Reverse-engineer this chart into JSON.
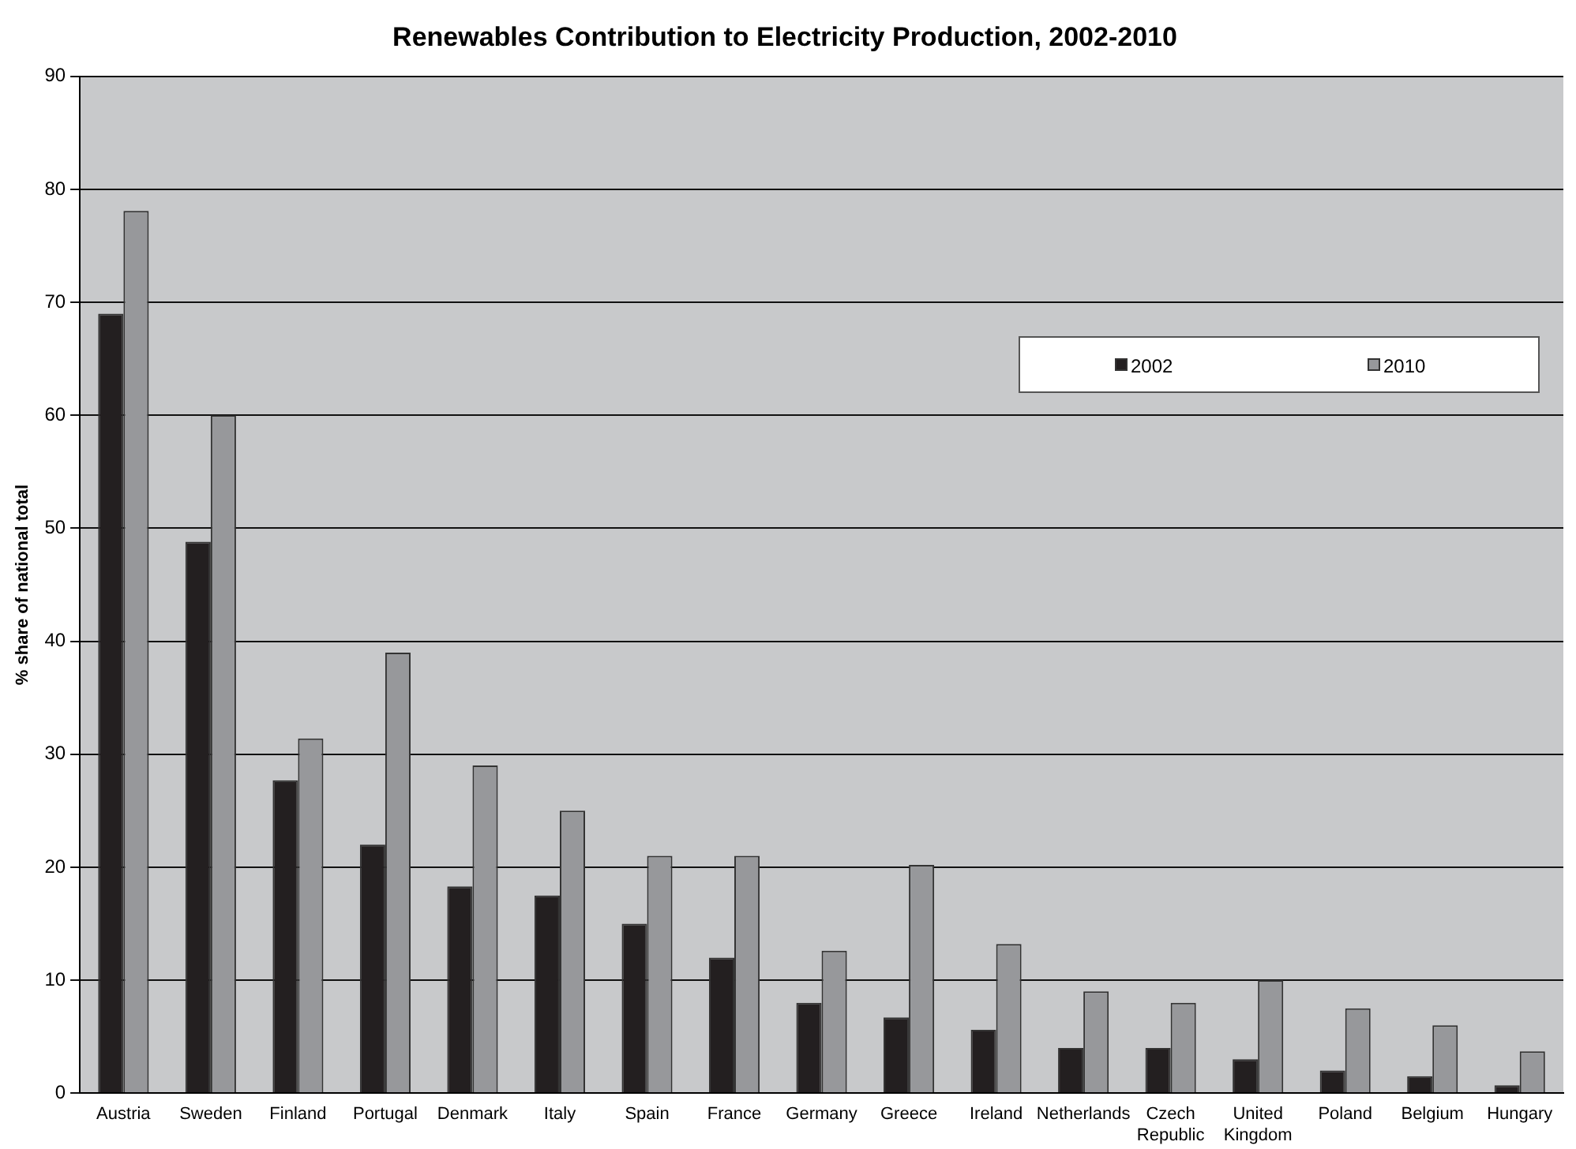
{
  "chart_data": {
    "type": "bar",
    "title": "Renewables Contribution to Electricity Production, 2002-2010",
    "ylabel": "% share of national total",
    "categories": [
      "Austria",
      "Sweden",
      "Finland",
      "Portugal",
      "Denmark",
      "Italy",
      "Spain",
      "France",
      "Germany",
      "Greece",
      "Ireland",
      "Netherlands",
      "Czech Republic",
      "United Kingdom",
      "Poland",
      "Belgium",
      "Hungary"
    ],
    "series": [
      {
        "name": "2002",
        "color": "#231f20",
        "values": [
          69,
          48.8,
          27.7,
          22,
          18.3,
          17.5,
          15,
          12,
          8,
          6.7,
          5.6,
          4,
          4,
          3,
          2,
          1.5,
          0.7
        ]
      },
      {
        "name": "2010",
        "color": "#97989b",
        "values": [
          78.1,
          60,
          31.4,
          39,
          29,
          25,
          21,
          21,
          12.6,
          20.2,
          13.2,
          9,
          8,
          10,
          7.5,
          6,
          3.7
        ]
      }
    ],
    "ylim": [
      0,
      90
    ],
    "yticks": [
      0,
      10,
      20,
      30,
      40,
      50,
      60,
      70,
      80,
      90
    ],
    "grid": "y",
    "legend": "top right"
  }
}
